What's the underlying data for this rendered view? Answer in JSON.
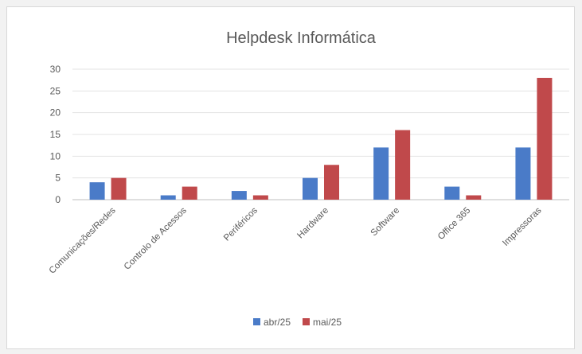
{
  "chart_data": {
    "type": "bar",
    "title": "Helpdesk Informática",
    "categories": [
      "Comunicações/Redes",
      "Controlo de Acessos",
      "Periféricos",
      "Hardware",
      "Software",
      "Office 365",
      "Impressoras"
    ],
    "series": [
      {
        "name": "abr/25",
        "color": "#4a7bc8",
        "values": [
          4,
          1,
          2,
          5,
          12,
          3,
          12
        ]
      },
      {
        "name": "mai/25",
        "color": "#c0494b",
        "values": [
          5,
          3,
          1,
          8,
          16,
          1,
          28
        ]
      }
    ],
    "ylim": [
      0,
      30
    ],
    "yticks": [
      0,
      5,
      10,
      15,
      20,
      25,
      30
    ],
    "grid": true,
    "legend": "bottom"
  }
}
